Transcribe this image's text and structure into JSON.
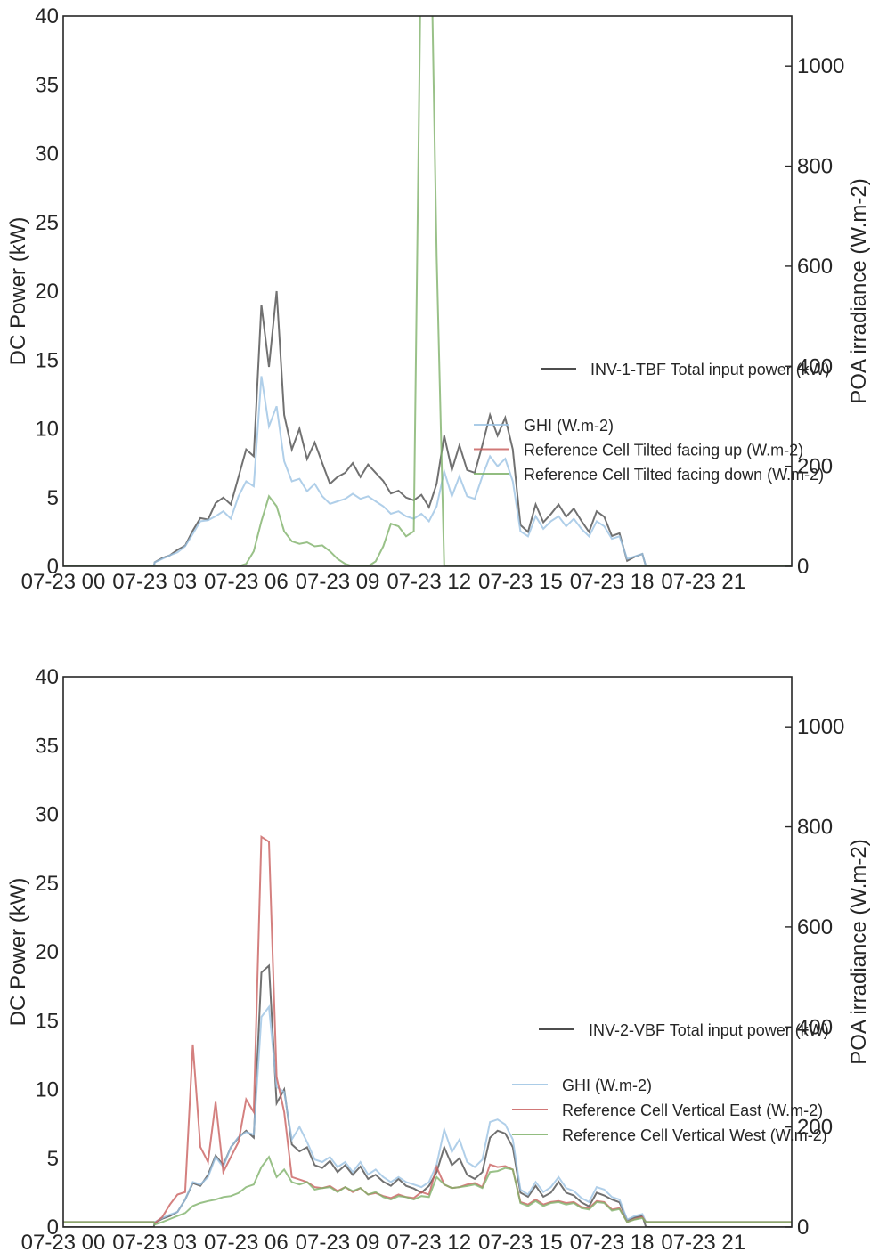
{
  "chart_data": [
    {
      "type": "line",
      "x_ticks": [
        "07-23 00",
        "07-23 03",
        "07-23 06",
        "07-23 09",
        "07-23 12",
        "07-23 15",
        "07-23 18",
        "07-23 21"
      ],
      "x_tick_hours": [
        0,
        3,
        6,
        9,
        12,
        15,
        18,
        21
      ],
      "xlim_hours": [
        0,
        23.9
      ],
      "ylabel": "DC Power (kW)",
      "ylim": [
        0,
        40
      ],
      "yticks": [
        0,
        5,
        10,
        15,
        20,
        25,
        30,
        35,
        40
      ],
      "y2label": "POA irradiance (W.m-2)",
      "y2lim": [
        0,
        1100
      ],
      "y2ticks": [
        0,
        200,
        400,
        600,
        800,
        1000
      ],
      "grid": false,
      "legend_primary": "right",
      "legend_secondary": "lower-right",
      "series_hours": [
        3.0,
        3.25,
        3.5,
        3.75,
        4.0,
        4.25,
        4.5,
        4.75,
        5.0,
        5.25,
        5.5,
        5.75,
        6.0,
        6.25,
        6.5,
        6.75,
        7.0,
        7.25,
        7.5,
        7.75,
        8.0,
        8.25,
        8.5,
        8.75,
        9.0,
        9.25,
        9.5,
        9.75,
        10.0,
        10.25,
        10.5,
        10.75,
        11.0,
        11.25,
        11.5,
        11.75,
        12.0,
        12.25,
        12.5,
        12.75,
        13.0,
        13.25,
        13.5,
        13.75,
        14.0,
        14.25,
        14.5,
        14.75,
        15.0,
        15.25,
        15.5,
        15.75,
        16.0,
        16.25,
        16.5,
        16.75,
        17.0,
        17.25,
        17.5,
        17.75,
        18.0,
        18.25,
        18.5,
        18.75,
        19.0
      ],
      "series": [
        {
          "name": "INV-1-TBF Total input power (kW)",
          "axis": "left",
          "color": "#4d4d4d",
          "values": [
            0.3,
            0.6,
            0.8,
            1.2,
            1.5,
            2.6,
            3.5,
            3.4,
            4.6,
            5.0,
            4.5,
            6.5,
            8.5,
            8.0,
            19.0,
            14.5,
            20.0,
            11.0,
            8.5,
            10.0,
            7.8,
            9.0,
            7.5,
            6.0,
            6.5,
            6.8,
            7.5,
            6.5,
            7.4,
            6.8,
            6.2,
            5.3,
            5.5,
            5.0,
            4.8,
            5.2,
            4.3,
            6.0,
            9.5,
            7.0,
            8.8,
            7.0,
            6.8,
            8.8,
            11.0,
            9.5,
            10.8,
            8.5,
            3.0,
            2.5,
            4.5,
            3.2,
            3.8,
            4.5,
            3.6,
            4.2,
            3.3,
            2.5,
            4.0,
            3.6,
            2.2,
            2.4,
            0.4,
            0.7,
            0.9
          ]
        },
        {
          "name": "GHI (W.m-2)",
          "axis": "right",
          "color": "#9cc3e3",
          "values": [
            8,
            15,
            22,
            28,
            40,
            65,
            90,
            92,
            100,
            110,
            95,
            140,
            170,
            160,
            380,
            280,
            320,
            210,
            170,
            175,
            150,
            165,
            140,
            125,
            130,
            135,
            145,
            135,
            140,
            130,
            120,
            105,
            110,
            100,
            95,
            105,
            90,
            120,
            190,
            140,
            180,
            140,
            135,
            180,
            220,
            200,
            215,
            170,
            70,
            60,
            100,
            75,
            90,
            100,
            80,
            95,
            75,
            60,
            90,
            80,
            55,
            60,
            15,
            20,
            25
          ]
        },
        {
          "name": "Reference Cell Tilted facing up (W.m-2)",
          "axis": "right",
          "color": "#c9605f",
          "values": []
        },
        {
          "name": "Reference Cell Tilted facing down (W.m-2)",
          "axis": "right",
          "color": "#7fb26a",
          "values": [
            0,
            0,
            0,
            0,
            0,
            0,
            0,
            0,
            0,
            0,
            0,
            0,
            5,
            30,
            90,
            140,
            120,
            70,
            50,
            45,
            48,
            40,
            42,
            30,
            15,
            5,
            0,
            0,
            0,
            10,
            40,
            85,
            80,
            60,
            70,
            1300,
            1500,
            620,
            0,
            0,
            0,
            0,
            0,
            0,
            0,
            0,
            0,
            0,
            0,
            0,
            0,
            0,
            0,
            0,
            0,
            0,
            0,
            0,
            0,
            0,
            0,
            0,
            0,
            0,
            0
          ]
        }
      ]
    },
    {
      "type": "line",
      "x_ticks": [
        "07-23 00",
        "07-23 03",
        "07-23 06",
        "07-23 09",
        "07-23 12",
        "07-23 15",
        "07-23 18",
        "07-23 21"
      ],
      "x_tick_hours": [
        0,
        3,
        6,
        9,
        12,
        15,
        18,
        21
      ],
      "xlim_hours": [
        0,
        23.9
      ],
      "ylabel": "DC Power (kW)",
      "ylim": [
        0,
        40
      ],
      "yticks": [
        0,
        5,
        10,
        15,
        20,
        25,
        30,
        35,
        40
      ],
      "y2label": "POA irradiance (W.m-2)",
      "y2lim": [
        0,
        1100
      ],
      "y2ticks": [
        0,
        200,
        400,
        600,
        800,
        1000
      ],
      "grid": false,
      "legend_primary": "right",
      "legend_secondary": "lower-right",
      "series_hours": [
        3.0,
        3.25,
        3.5,
        3.75,
        4.0,
        4.25,
        4.5,
        4.75,
        5.0,
        5.25,
        5.5,
        5.75,
        6.0,
        6.25,
        6.5,
        6.75,
        7.0,
        7.25,
        7.5,
        7.75,
        8.0,
        8.25,
        8.5,
        8.75,
        9.0,
        9.25,
        9.5,
        9.75,
        10.0,
        10.25,
        10.5,
        10.75,
        11.0,
        11.25,
        11.5,
        11.75,
        12.0,
        12.25,
        12.5,
        12.75,
        13.0,
        13.25,
        13.5,
        13.75,
        14.0,
        14.25,
        14.5,
        14.75,
        15.0,
        15.25,
        15.5,
        15.75,
        16.0,
        16.25,
        16.5,
        16.75,
        17.0,
        17.25,
        17.5,
        17.75,
        18.0,
        18.25,
        18.5,
        18.75,
        19.0
      ],
      "series": [
        {
          "name": "INV-2-VBF Total input power (kW)",
          "axis": "left",
          "color": "#4d4d4d",
          "values": [
            0.3,
            0.6,
            0.8,
            1.1,
            2.0,
            3.2,
            3.0,
            3.8,
            5.2,
            4.5,
            5.8,
            6.5,
            7.0,
            6.5,
            18.5,
            19.0,
            9.0,
            10.0,
            6.0,
            5.5,
            5.8,
            4.5,
            4.3,
            4.8,
            4.0,
            4.5,
            3.8,
            4.4,
            3.5,
            3.8,
            3.3,
            3.0,
            3.5,
            3.0,
            2.8,
            2.5,
            3.0,
            4.0,
            5.8,
            4.5,
            5.0,
            3.8,
            3.5,
            4.0,
            6.5,
            7.0,
            6.8,
            5.8,
            2.5,
            2.2,
            3.0,
            2.2,
            2.5,
            3.3,
            2.5,
            2.3,
            1.8,
            1.5,
            2.5,
            2.3,
            2.0,
            1.8,
            0.5,
            0.7,
            0.8
          ]
        },
        {
          "name": "GHI (W.m-2)",
          "axis": "right",
          "color": "#9cc3e3",
          "values": [
            10,
            18,
            25,
            30,
            55,
            90,
            85,
            100,
            140,
            120,
            160,
            180,
            190,
            185,
            420,
            440,
            280,
            270,
            175,
            200,
            170,
            135,
            130,
            140,
            120,
            130,
            110,
            130,
            105,
            115,
            100,
            90,
            100,
            90,
            85,
            80,
            90,
            125,
            195,
            150,
            175,
            130,
            120,
            135,
            210,
            215,
            205,
            175,
            75,
            65,
            90,
            70,
            80,
            100,
            78,
            72,
            58,
            50,
            80,
            75,
            60,
            55,
            15,
            22,
            26
          ]
        },
        {
          "name": "Reference Cell Vertical East (W.m-2)",
          "axis": "right",
          "color": "#c9605f",
          "values": [
            8,
            20,
            45,
            65,
            70,
            365,
            160,
            130,
            250,
            110,
            140,
            170,
            255,
            230,
            780,
            770,
            300,
            230,
            100,
            95,
            90,
            80,
            78,
            82,
            72,
            80,
            70,
            78,
            65,
            68,
            62,
            58,
            65,
            60,
            58,
            70,
            65,
            120,
            85,
            78,
            80,
            85,
            88,
            80,
            125,
            120,
            122,
            115,
            50,
            45,
            55,
            45,
            50,
            52,
            48,
            50,
            40,
            38,
            52,
            50,
            35,
            38,
            10,
            16,
            20
          ]
        },
        {
          "name": "Reference Cell Vertical West (W.m-2)",
          "axis": "right",
          "color": "#7fb26a",
          "values": [
            5,
            10,
            16,
            22,
            28,
            42,
            48,
            52,
            55,
            60,
            62,
            68,
            80,
            85,
            120,
            140,
            100,
            115,
            90,
            85,
            90,
            75,
            78,
            80,
            70,
            80,
            72,
            78,
            65,
            70,
            60,
            55,
            62,
            60,
            55,
            62,
            60,
            100,
            85,
            78,
            80,
            82,
            85,
            78,
            110,
            112,
            118,
            115,
            48,
            42,
            52,
            42,
            48,
            50,
            45,
            48,
            38,
            35,
            50,
            48,
            33,
            36,
            10,
            15,
            18
          ]
        }
      ]
    }
  ]
}
